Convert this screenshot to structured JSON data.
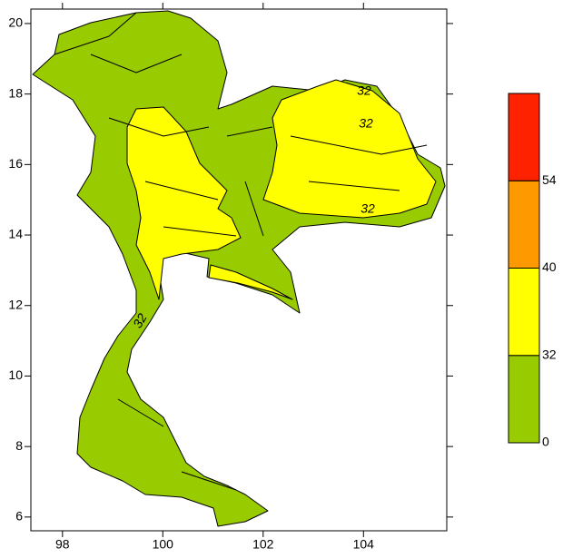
{
  "chart_data": {
    "type": "map",
    "xlim": [
      97.37,
      105.66
    ],
    "ylim": [
      5.61,
      20.41
    ],
    "xticks": [
      98,
      100,
      102,
      104
    ],
    "yticks": [
      6,
      8,
      10,
      12,
      14,
      16,
      18,
      20
    ],
    "colorbar": {
      "levels": [
        0,
        32,
        40,
        54
      ],
      "colors": [
        "#99cc00",
        "#ffff00",
        "#ff9900",
        "#ff2200"
      ]
    },
    "contour_labels": [
      32,
      32,
      32,
      32
    ]
  }
}
